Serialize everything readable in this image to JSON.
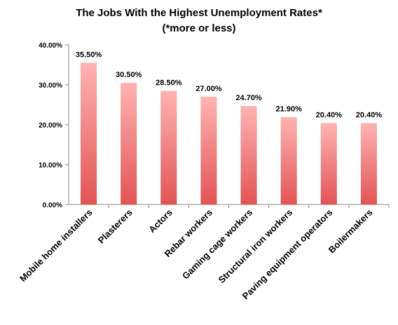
{
  "chart_data": {
    "type": "bar",
    "title_line1": "The Jobs With the Highest Unemployment Rates*",
    "title_line2": "(*more or less)",
    "categories": [
      "Mobile home installers",
      "Plasterers",
      "Actors",
      "Rebar workers",
      "Gaming cage workers",
      "Structural iron workers",
      "Paving equipment operators",
      "Boilermakers"
    ],
    "values": [
      35.5,
      30.5,
      28.5,
      27.0,
      24.7,
      21.9,
      20.4,
      20.4
    ],
    "data_labels": [
      "35.50%",
      "30.50%",
      "28.50%",
      "27.00%",
      "24.70%",
      "21.90%",
      "20.40%",
      "20.40%"
    ],
    "ylim": [
      0,
      40
    ],
    "yticks": [
      0,
      10,
      20,
      30,
      40
    ],
    "ytick_labels": [
      "0.00%",
      "10.00%",
      "20.00%",
      "30.00%",
      "40.00%"
    ],
    "grid": false,
    "legend": "none",
    "colors": {
      "bar_top": "#ffb3b3",
      "bar_bottom": "#e25454",
      "axis": "#8c8c8c"
    }
  }
}
